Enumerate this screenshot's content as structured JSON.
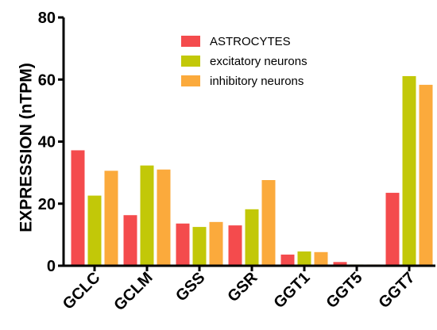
{
  "chart_data": {
    "type": "bar",
    "title": "",
    "xlabel": "",
    "ylabel": "EXPRESSION (nTPM)",
    "ylim": [
      0,
      80
    ],
    "yticks": [
      0,
      20,
      40,
      60,
      80
    ],
    "grid": false,
    "legend_position": "top-right",
    "categories": [
      "GCLC",
      "GCLM",
      "GSS",
      "GSR",
      "GGT1",
      "GGT5",
      "GGT7"
    ],
    "series": [
      {
        "name": "ASTROCYTES",
        "color": "#f44b4d",
        "values": [
          37.2,
          16.3,
          13.6,
          13.0,
          3.6,
          1.2,
          23.5
        ]
      },
      {
        "name": "excitatory neurons",
        "color": "#c2c808",
        "values": [
          22.6,
          32.3,
          12.5,
          18.2,
          4.6,
          0.4,
          61.1
        ]
      },
      {
        "name": "inhibitory neurons",
        "color": "#fbaa3c",
        "values": [
          30.6,
          31.0,
          14.1,
          27.6,
          4.4,
          0.4,
          58.3
        ]
      }
    ]
  }
}
